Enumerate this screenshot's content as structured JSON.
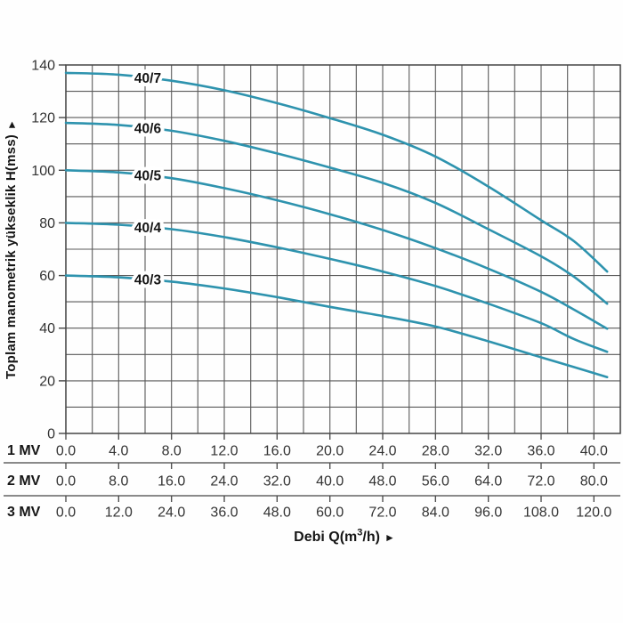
{
  "page": {
    "background": "#fefefe"
  },
  "y_axis": {
    "label": "Toplam manometrik yükseklik H(mss)",
    "arrow": "►",
    "ticks": [
      0,
      20,
      40,
      60,
      80,
      100,
      120,
      140
    ]
  },
  "x_axis": {
    "title_pre": "Debi Q(m",
    "title_sup": "3",
    "title_post": "/h)",
    "arrow": "►"
  },
  "axis_rows": [
    {
      "label": "1 MV",
      "values": [
        "0.0",
        "4.0",
        "8.0",
        "12.0",
        "16.0",
        "20.0",
        "24.0",
        "28.0",
        "32.0",
        "36.0",
        "40.0"
      ]
    },
    {
      "label": "2 MV",
      "values": [
        "0.0",
        "8.0",
        "16.0",
        "24.0",
        "32.0",
        "40.0",
        "48.0",
        "56.0",
        "64.0",
        "72.0",
        "80.0"
      ]
    },
    {
      "label": "3 MV",
      "values": [
        "0.0",
        "12.0",
        "24.0",
        "36.0",
        "48.0",
        "60.0",
        "72.0",
        "84.0",
        "96.0",
        "108.0",
        "120.0"
      ]
    }
  ],
  "chart_data": {
    "type": "line",
    "title": "",
    "xlabel": "Debi Q(m3/h)",
    "ylabel": "Toplam manometrik yükseklik H(mss)",
    "xlim": [
      0,
      42
    ],
    "ylim": [
      0,
      140
    ],
    "grid": {
      "on": true,
      "x_step": 2,
      "y_step": 10
    },
    "x_scale_note": "x values in 1 MV units; 2 MV row = 2x, 3 MV row = 3x",
    "label_q": 6.2,
    "colors": {
      "curve": "#2e93ae",
      "grid": "#5a5a5a",
      "border": "#454545",
      "tick_text": "#333333",
      "label_text": "#141414"
    },
    "series": [
      {
        "name": "40/7",
        "points": [
          [
            0,
            137
          ],
          [
            4,
            136.3
          ],
          [
            8,
            134
          ],
          [
            12,
            130.4
          ],
          [
            16,
            125.5
          ],
          [
            20,
            119.8
          ],
          [
            24,
            113.5
          ],
          [
            28,
            105.2
          ],
          [
            32,
            93.8
          ],
          [
            36,
            81
          ],
          [
            38.5,
            73
          ],
          [
            41,
            61.5
          ]
        ]
      },
      {
        "name": "40/6",
        "points": [
          [
            0,
            118
          ],
          [
            4,
            117.2
          ],
          [
            8,
            115
          ],
          [
            12,
            111.2
          ],
          [
            16,
            106.4
          ],
          [
            20,
            101
          ],
          [
            24,
            95.2
          ],
          [
            28,
            87.6
          ],
          [
            32,
            77.6
          ],
          [
            36,
            67.3
          ],
          [
            38.5,
            59.5
          ],
          [
            41,
            49.3
          ]
        ]
      },
      {
        "name": "40/5",
        "points": [
          [
            0,
            100
          ],
          [
            4,
            99.2
          ],
          [
            8,
            97
          ],
          [
            12,
            93.2
          ],
          [
            16,
            88.6
          ],
          [
            20,
            83.3
          ],
          [
            24,
            77.3
          ],
          [
            28,
            70.4
          ],
          [
            32,
            62.6
          ],
          [
            36,
            53.8
          ],
          [
            38.5,
            47
          ],
          [
            41,
            39.8
          ]
        ]
      },
      {
        "name": "40/4",
        "points": [
          [
            0,
            80
          ],
          [
            4,
            79.3
          ],
          [
            8,
            77.6
          ],
          [
            12,
            74.6
          ],
          [
            16,
            70.7
          ],
          [
            20,
            66.3
          ],
          [
            24,
            61.5
          ],
          [
            28,
            56
          ],
          [
            32,
            49.3
          ],
          [
            36,
            41.9
          ],
          [
            38.5,
            35.8
          ],
          [
            41,
            31
          ]
        ]
      },
      {
        "name": "40/3",
        "points": [
          [
            0,
            60
          ],
          [
            4,
            59.3
          ],
          [
            8,
            57.7
          ],
          [
            12,
            55.1
          ],
          [
            16,
            51.8
          ],
          [
            20,
            48.1
          ],
          [
            24,
            44.6
          ],
          [
            28,
            40.6
          ],
          [
            32,
            35
          ],
          [
            36,
            28.9
          ],
          [
            38.5,
            25.2
          ],
          [
            41,
            21.4
          ]
        ]
      }
    ]
  }
}
